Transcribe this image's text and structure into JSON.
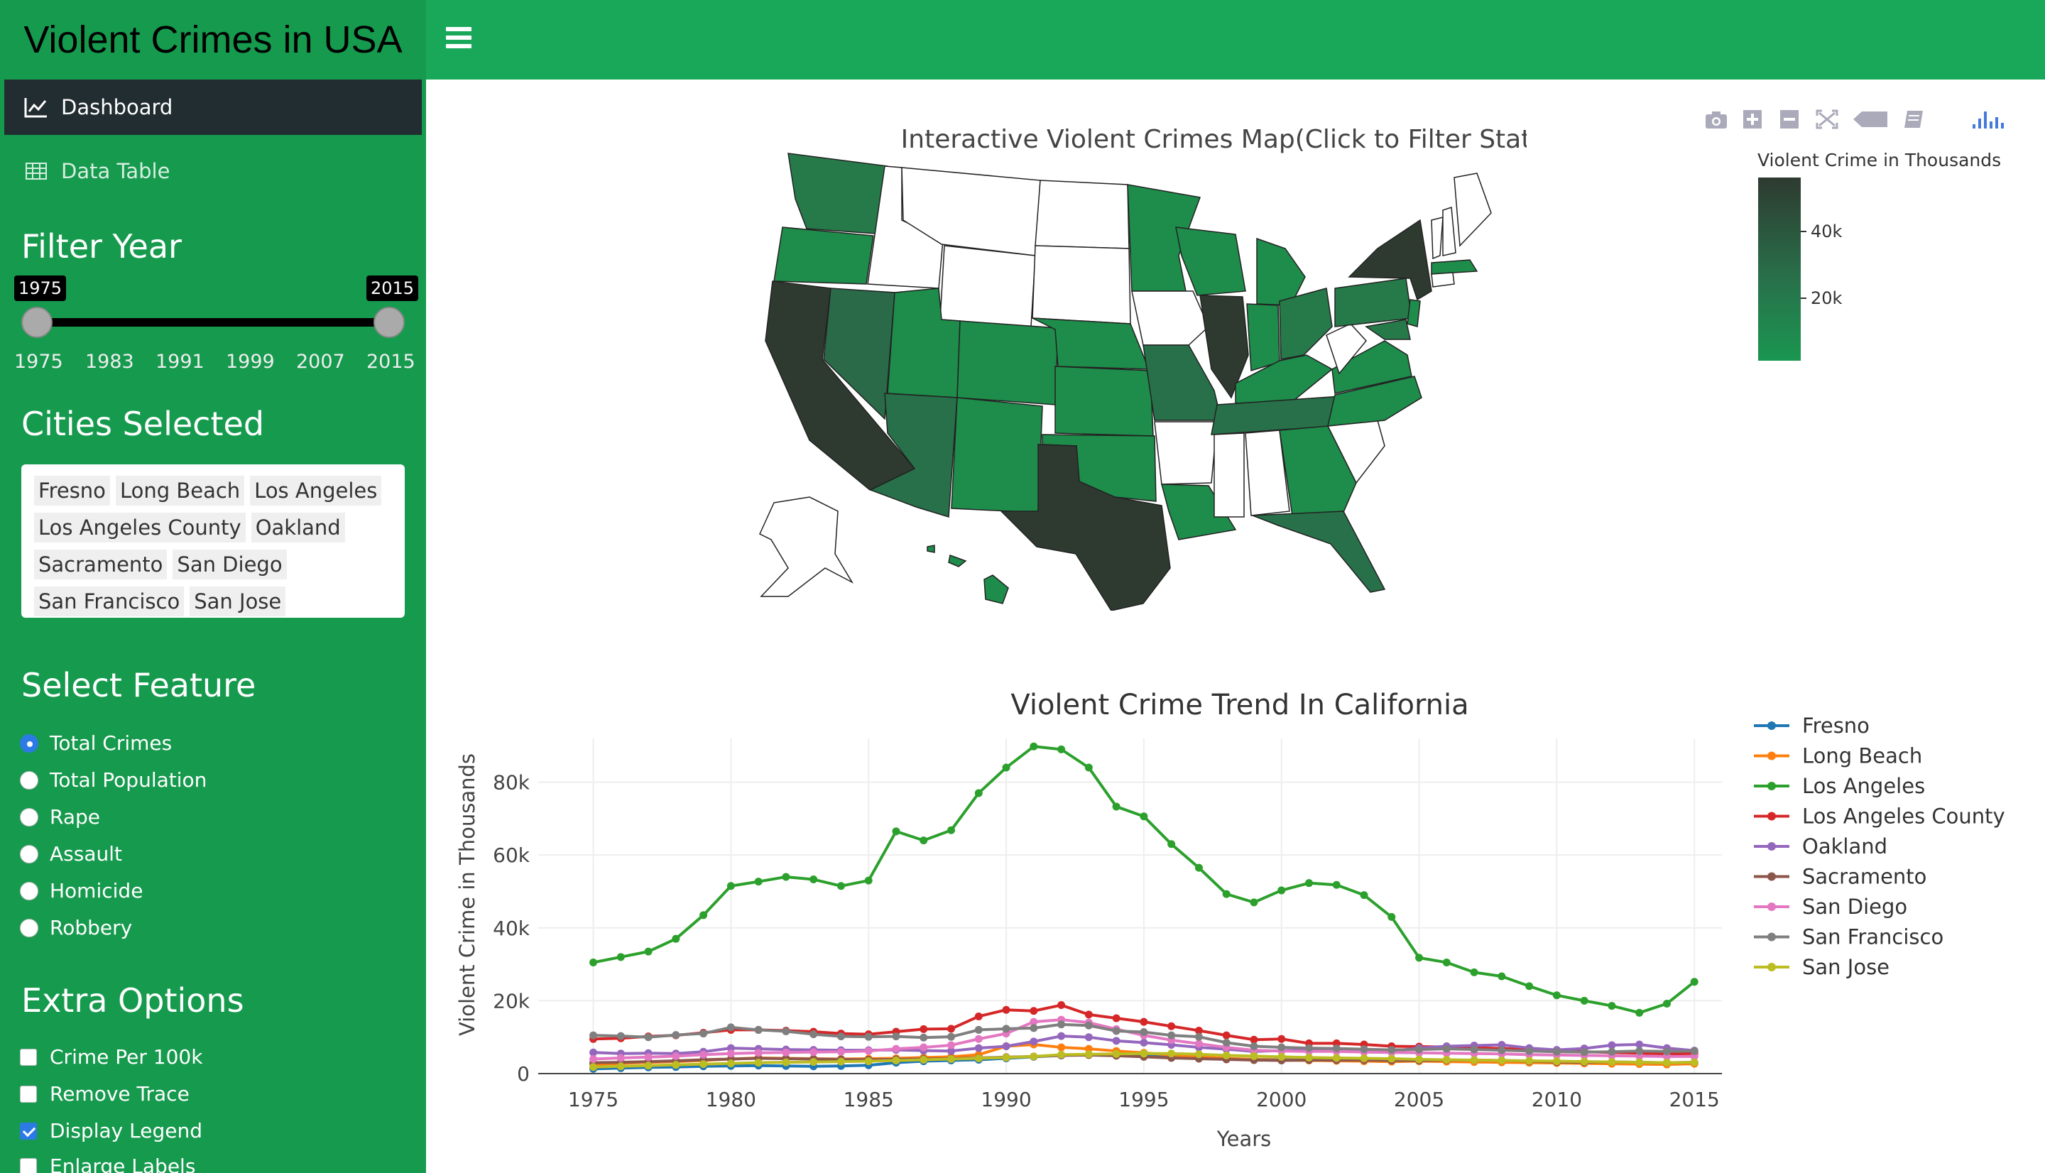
{
  "header": {
    "title": "Violent Crimes in USA"
  },
  "sidebar": {
    "menu": [
      {
        "label": "Dashboard",
        "icon": "line-chart-icon",
        "active": true
      },
      {
        "label": "Data Table",
        "icon": "table-icon",
        "active": false
      }
    ],
    "filter_year": {
      "title": "Filter Year",
      "min": 1975,
      "max": 2015,
      "from_label": "1975",
      "to_label": "2015",
      "ticks": [
        "1975",
        "1983",
        "1991",
        "1999",
        "2007",
        "2015"
      ]
    },
    "cities": {
      "title": "Cities Selected",
      "items": [
        "Fresno",
        "Long Beach",
        "Los Angeles",
        "Los Angeles County",
        "Oakland",
        "Sacramento",
        "San Diego",
        "San Francisco",
        "San Jose"
      ]
    },
    "feature": {
      "title": "Select Feature",
      "options": [
        "Total Crimes",
        "Total Population",
        "Rape",
        "Assault",
        "Homicide",
        "Robbery"
      ],
      "selected": "Total Crimes"
    },
    "extra": {
      "title": "Extra Options",
      "options": [
        {
          "label": "Crime Per 100k",
          "checked": false
        },
        {
          "label": "Remove Trace",
          "checked": false
        },
        {
          "label": "Display Legend",
          "checked": true
        },
        {
          "label": "Enlarge Labels",
          "checked": false
        }
      ]
    }
  },
  "map": {
    "title": "Interactive Violent Crimes Map(Click to Filter States)",
    "colorbar_title": "Violent Crime in Thousands",
    "colorbar_ticks": [
      "40k",
      "20k"
    ],
    "colors": {
      "low": "#1e8c4a",
      "mid": "#28704a",
      "high": "#2e3a30",
      "none": "#ffffff"
    }
  },
  "chart_data": {
    "type": "line",
    "title": "Violent Crime Trend In California",
    "xlabel": "Years",
    "ylabel": "Violent Crime in Thousands",
    "xlim": [
      1973,
      2016
    ],
    "ylim": [
      0,
      92000
    ],
    "x_ticks": [
      1975,
      1980,
      1985,
      1990,
      1995,
      2000,
      2005,
      2010,
      2015
    ],
    "y_ticks": [
      0,
      20000,
      40000,
      60000,
      80000
    ],
    "y_tick_labels": [
      "0",
      "20k",
      "40k",
      "60k",
      "80k"
    ],
    "x": [
      1975,
      1976,
      1977,
      1978,
      1979,
      1980,
      1981,
      1982,
      1983,
      1984,
      1985,
      1986,
      1987,
      1988,
      1989,
      1990,
      1991,
      1992,
      1993,
      1994,
      1995,
      1996,
      1997,
      1998,
      1999,
      2000,
      2001,
      2002,
      2003,
      2004,
      2005,
      2006,
      2007,
      2008,
      2009,
      2010,
      2011,
      2012,
      2013,
      2014,
      2015
    ],
    "series": [
      {
        "name": "Fresno",
        "color": "#1f77b4",
        "values": [
          1300,
          1500,
          1700,
          1800,
          2000,
          2100,
          2200,
          2100,
          2000,
          2100,
          2300,
          3000,
          3400,
          3600,
          3800,
          4200,
          4600,
          5000,
          5200,
          5000,
          4800,
          4600,
          4400,
          4100,
          3900,
          3800,
          3700,
          3700,
          3600,
          3600,
          3500,
          3400,
          3300,
          3200,
          3100,
          3000,
          2900,
          2800,
          2800,
          2700,
          2800
        ]
      },
      {
        "name": "Long Beach",
        "color": "#ff7f0e",
        "values": [
          2500,
          2800,
          3100,
          3300,
          3600,
          4000,
          4300,
          4200,
          4100,
          4000,
          4100,
          4200,
          4400,
          4600,
          5200,
          7500,
          8000,
          7200,
          6800,
          6200,
          5700,
          5100,
          4600,
          4200,
          3900,
          3700,
          3600,
          3500,
          3400,
          3300,
          3400,
          3300,
          3200,
          3100,
          3000,
          2900,
          2800,
          2700,
          2600,
          2500,
          2700
        ]
      },
      {
        "name": "Los Angeles",
        "color": "#2ca02c",
        "values": [
          30500,
          32000,
          33500,
          37000,
          43500,
          51500,
          52700,
          54000,
          53300,
          51500,
          53000,
          66500,
          64000,
          66800,
          77000,
          84000,
          89800,
          89000,
          84000,
          73300,
          70600,
          63000,
          56500,
          49300,
          47000,
          50300,
          52300,
          51800,
          49000,
          43000,
          31800,
          30500,
          27800,
          26700,
          24000,
          21500,
          20000,
          18600,
          16700,
          19200,
          25200
        ]
      },
      {
        "name": "Los Angeles County",
        "color": "#d62728",
        "values": [
          9500,
          9700,
          10200,
          10500,
          11200,
          12000,
          12000,
          11800,
          11500,
          11000,
          10800,
          11500,
          12200,
          12300,
          15700,
          17500,
          17200,
          18800,
          16200,
          15200,
          14200,
          13000,
          11800,
          10500,
          9300,
          9500,
          8300,
          8300,
          8000,
          7500,
          7400,
          7300,
          7100,
          6900,
          6600,
          6300,
          6000,
          5800,
          5600,
          5400,
          5500
        ]
      },
      {
        "name": "Oakland",
        "color": "#9467bd",
        "values": [
          5800,
          5500,
          5600,
          5500,
          6000,
          7000,
          6800,
          6600,
          6500,
          6400,
          6400,
          6500,
          6300,
          6200,
          7000,
          7500,
          8800,
          10300,
          10000,
          9000,
          8500,
          7900,
          7200,
          6700,
          6100,
          6300,
          6400,
          6200,
          6100,
          6200,
          7000,
          7500,
          7700,
          7900,
          7000,
          6500,
          6900,
          7800,
          8000,
          7000,
          6300
        ]
      },
      {
        "name": "Sacramento",
        "color": "#8c564b",
        "values": [
          3000,
          3100,
          3300,
          3500,
          3800,
          4000,
          4200,
          4100,
          4000,
          3900,
          3800,
          3900,
          4000,
          4100,
          4300,
          4500,
          4700,
          5000,
          5100,
          4900,
          4600,
          4300,
          4100,
          3900,
          3700,
          3600,
          3700,
          3700,
          3700,
          3600,
          3600,
          3700,
          3700,
          3600,
          3400,
          3200,
          3100,
          3200,
          3100,
          3000,
          3100
        ]
      },
      {
        "name": "San Diego",
        "color": "#e377c2",
        "values": [
          4000,
          4300,
          4500,
          4800,
          5200,
          5500,
          5700,
          5800,
          5900,
          6000,
          6200,
          6800,
          7200,
          7800,
          9500,
          11000,
          14200,
          14800,
          14000,
          12200,
          10500,
          9200,
          8200,
          7200,
          6400,
          6200,
          6100,
          6100,
          5900,
          5800,
          5700,
          5600,
          5500,
          5400,
          5200,
          5100,
          5000,
          4900,
          4800,
          4700,
          4700
        ]
      },
      {
        "name": "San Francisco",
        "color": "#7f7f7f",
        "values": [
          10500,
          10300,
          10000,
          10600,
          11000,
          12700,
          12000,
          11600,
          10800,
          10200,
          10100,
          10200,
          9900,
          10100,
          12000,
          12300,
          12500,
          13500,
          13200,
          11700,
          11400,
          10500,
          10100,
          8500,
          7500,
          7200,
          7000,
          6900,
          6700,
          6500,
          6600,
          6800,
          6600,
          6400,
          6200,
          6000,
          5900,
          6000,
          6200,
          6100,
          6200
        ]
      },
      {
        "name": "San Jose",
        "color": "#bcbd22",
        "values": [
          1800,
          2000,
          2200,
          2400,
          2600,
          2800,
          3000,
          3100,
          3200,
          3300,
          3400,
          3600,
          3800,
          4000,
          4200,
          4400,
          4700,
          5200,
          5300,
          5400,
          5500,
          5500,
          5300,
          5000,
          4800,
          4600,
          4400,
          4300,
          4200,
          4100,
          3900,
          3800,
          3700,
          3600,
          3500,
          3400,
          3300,
          3200,
          3100,
          3000,
          3100
        ]
      }
    ]
  }
}
